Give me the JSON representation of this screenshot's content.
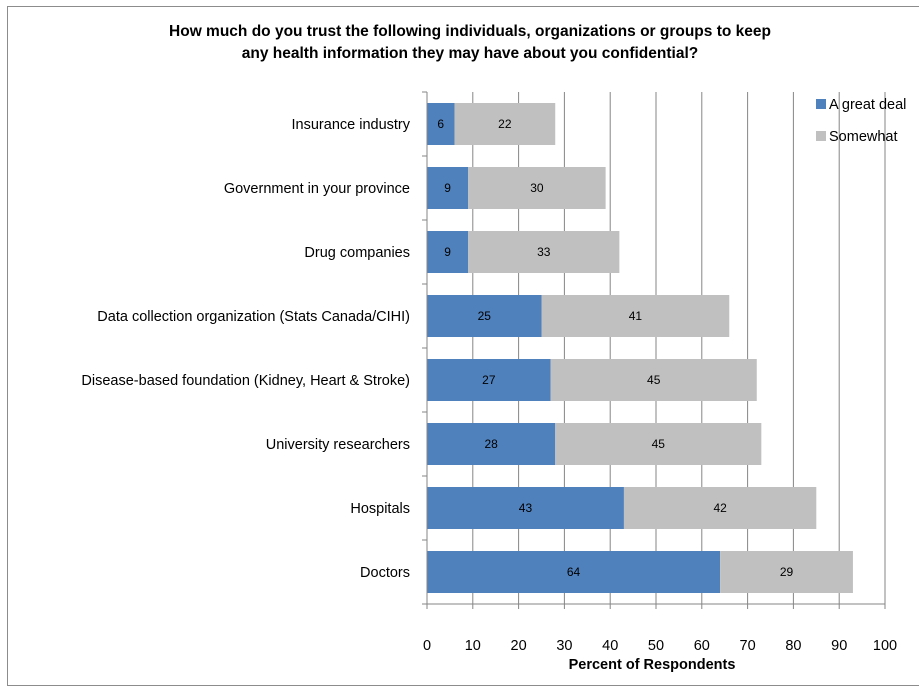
{
  "chart_data": {
    "type": "bar",
    "orientation": "horizontal",
    "stacked": true,
    "title": [
      "How much do you trust the following individuals, organizations or groups to keep",
      "any health information they may have about you confidential?"
    ],
    "xlabel": "Percent of Respondents",
    "ylabel": "",
    "xlim": [
      0,
      100
    ],
    "x_ticks": [
      0,
      10,
      20,
      30,
      40,
      50,
      60,
      70,
      80,
      90,
      100
    ],
    "grid": "vertical",
    "legend": "top-right",
    "categories": [
      "Insurance industry",
      "Government in your province",
      "Drug companies",
      "Data collection organization (Stats Canada/CIHI)",
      "Disease-based foundation (Kidney, Heart & Stroke)",
      "University researchers",
      "Hospitals",
      "Doctors"
    ],
    "series": [
      {
        "name": "A great deal",
        "color": "#4f81bd",
        "values": [
          6,
          9,
          9,
          25,
          27,
          28,
          43,
          64
        ]
      },
      {
        "name": "Somewhat",
        "color": "#c0c0c0",
        "values": [
          22,
          30,
          33,
          41,
          45,
          45,
          42,
          29
        ]
      }
    ]
  }
}
